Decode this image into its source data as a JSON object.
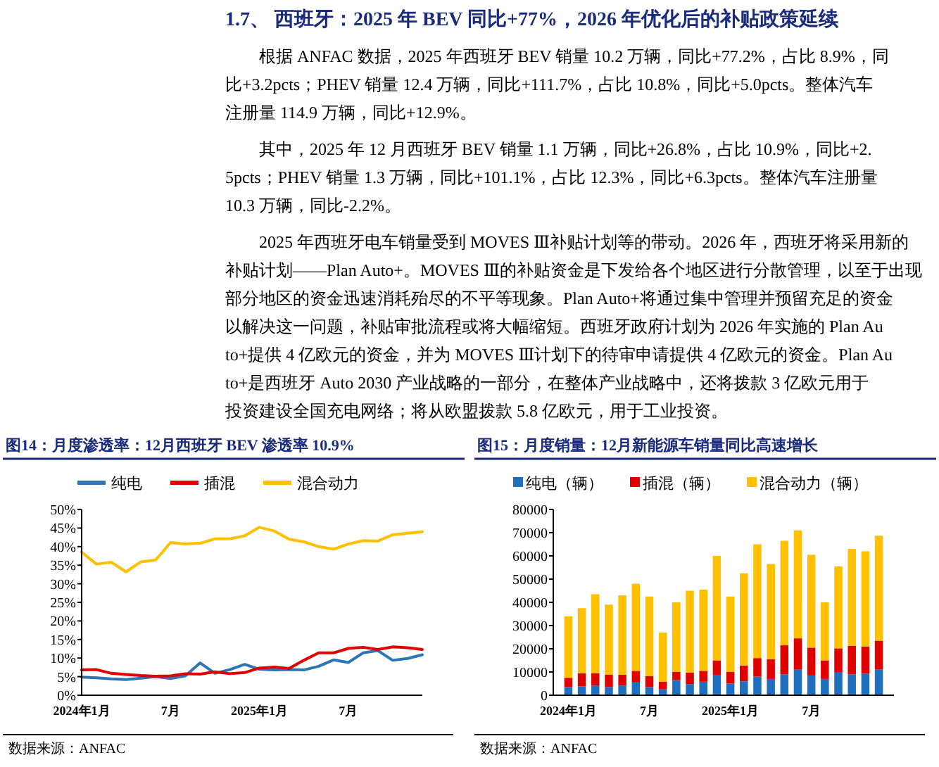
{
  "chart_data": [
    {
      "type": "other",
      "title": "1.7、 西班牙：2025 年 BEV 同比+77%，2026 年优化后的补贴政策延续",
      "annotations": [
        "根据 ANFAC 数据，2025 年西班牙 BEV 销量 10.2 万辆，同比+77.2%，占比 8.9%，同比+3.2pcts；PHEV 销量 12.4 万辆，同比+111.7%，占比 10.8%，同比+5.0pcts。整体汽车注册量 114.9 万辆，同比+12.9%。",
        "其中，2025 年 12 月西班牙 BEV 销量 1.1 万辆，同比+26.8%，占比 10.9%，同比+2.5pcts；PHEV 销量 1.3 万辆，同比+101.1%，占比 12.3%，同比+6.3pcts。整体汽车注册量 10.3 万辆，同比-2.2%。",
        "2025 年西班牙电车销量受到 MOVES Ⅲ补贴计划等的带动。2026 年，西班牙将采用新的补贴计划——Plan Auto+。MOVES Ⅲ的补贴资金是下发给各个地区进行分散管理，以至于出现部分地区的资金迅速消耗殆尽的不平等现象。Plan Auto+将通过集中管理并预留充足的资金以解决这一问题，补贴审批流程或将大幅缩短。西班牙政府计划为 2026 年实施的 Plan Auto+提供 4 亿欧元的资金，并为 MOVES Ⅲ计划下的待审申请提供 4 亿欧元的资金。Plan Auto+是西班牙 Auto 2030 产业战略的一部分，在整体产业战略中，还将拨款 3 亿欧元用于投资建设全国充电网络；将从欧盟拨款 5.8 亿欧元，用于工业投资。"
      ]
    },
    {
      "type": "line",
      "title": "图14：月度渗透率：12月西班牙 BEV 渗透率 10.9%",
      "legend": "top",
      "annotations": [
        "数据来源：ANFAC"
      ],
      "categories": [
        "2024年1月",
        null,
        null,
        null,
        null,
        null,
        "7月",
        null,
        null,
        null,
        null,
        null,
        "2025年1月",
        null,
        null,
        null,
        null,
        null,
        "7月",
        null,
        null,
        null,
        null,
        null
      ],
      "ylim": [
        0,
        50
      ],
      "yticks": [
        {
          "value": 0,
          "label": "0%"
        },
        {
          "value": 5,
          "label": "5%"
        },
        {
          "value": 10,
          "label": "10%"
        },
        {
          "value": 15,
          "label": "15%"
        },
        {
          "value": 20,
          "label": "20%"
        },
        {
          "value": 25,
          "label": "25%"
        },
        {
          "value": 30,
          "label": "30%"
        },
        {
          "value": 35,
          "label": "35%"
        },
        {
          "value": 40,
          "label": "40%"
        },
        {
          "value": 45,
          "label": "45%"
        },
        {
          "value": 50,
          "label": "50%"
        }
      ],
      "series": [
        {
          "name": "纯电",
          "color": "#2e75b6",
          "values": [
            4.9,
            4.7,
            4.4,
            4.2,
            4.6,
            5.0,
            4.5,
            5.2,
            8.7,
            5.9,
            6.9,
            8.3,
            7.0,
            6.8,
            6.9,
            6.8,
            7.8,
            9.5,
            8.8,
            11.4,
            12.0,
            9.4,
            9.9,
            10.9
          ]
        },
        {
          "name": "插混",
          "color": "#e00000",
          "values": [
            6.8,
            6.9,
            5.9,
            5.6,
            5.3,
            5.1,
            5.2,
            5.8,
            5.7,
            6.3,
            5.8,
            6.1,
            7.3,
            7.6,
            7.2,
            9.4,
            11.4,
            11.4,
            12.6,
            12.9,
            12.3,
            13.0,
            12.8,
            12.3
          ]
        },
        {
          "name": "混合动力",
          "color": "#ffc000",
          "values": [
            38.5,
            35.3,
            35.8,
            33.2,
            35.9,
            36.4,
            41.1,
            40.7,
            40.9,
            42.1,
            42.1,
            42.9,
            45.2,
            44.2,
            42.0,
            41.3,
            40.0,
            39.3,
            40.7,
            41.6,
            41.5,
            43.2,
            43.6,
            44.0
          ]
        }
      ]
    },
    {
      "type": "bar",
      "title": "图15：月度销量：12月新能源车销量同比高速增长",
      "legend": "top",
      "stacked": true,
      "annotations": [
        "数据来源：ANFAC"
      ],
      "categories": [
        "2024年1月",
        null,
        null,
        null,
        null,
        null,
        "7月",
        null,
        null,
        null,
        null,
        null,
        "2025年1月",
        null,
        null,
        null,
        null,
        null,
        "7月",
        null,
        null,
        null,
        null,
        null
      ],
      "ylim": [
        0,
        80000
      ],
      "yticks": [
        0,
        10000,
        20000,
        30000,
        40000,
        50000,
        60000,
        70000,
        80000
      ],
      "series": [
        {
          "name": "纯电（辆）",
          "color": "#1f6fbf",
          "values": [
            3500,
            3800,
            4200,
            3500,
            4200,
            5500,
            3500,
            2500,
            6500,
            4800,
            5800,
            8800,
            5000,
            6000,
            8000,
            7000,
            9000,
            11000,
            8500,
            7000,
            10000,
            9000,
            9300,
            11000
          ]
        },
        {
          "name": "插混（辆）",
          "color": "#e00000",
          "values": [
            4000,
            5700,
            5300,
            5300,
            4600,
            5000,
            4700,
            3300,
            3500,
            5000,
            4700,
            6200,
            5000,
            6800,
            8000,
            8500,
            12500,
            13500,
            12000,
            8000,
            10200,
            12300,
            11700,
            12500
          ]
        },
        {
          "name": "混合动力（辆）",
          "color": "#ffc000",
          "values": [
            26500,
            28000,
            34000,
            30200,
            34200,
            37500,
            34300,
            21200,
            30000,
            35200,
            35000,
            45000,
            32500,
            39700,
            49000,
            41000,
            45000,
            46500,
            40000,
            25000,
            35300,
            41700,
            41000,
            45200
          ]
        }
      ]
    }
  ]
}
